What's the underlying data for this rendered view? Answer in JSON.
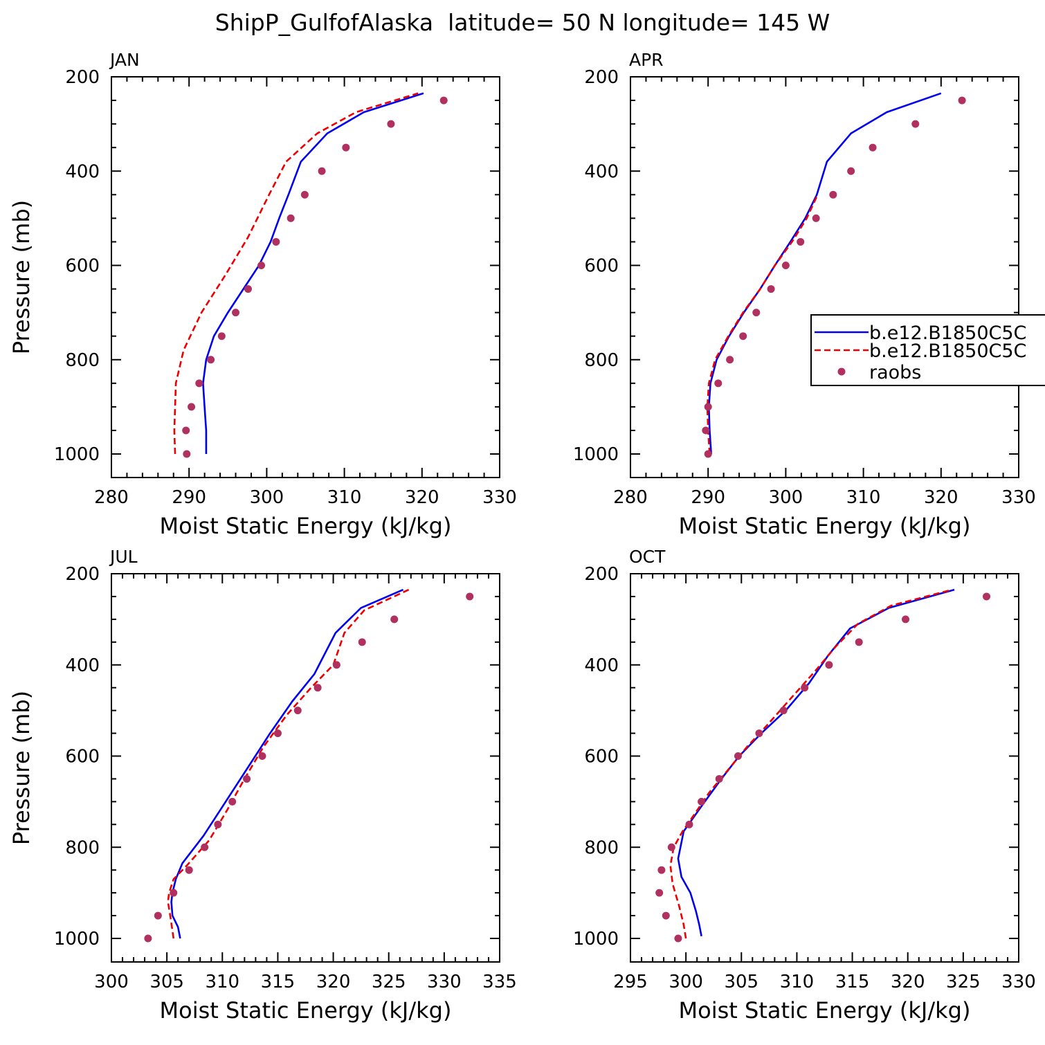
{
  "figure": {
    "title": "ShipP_GulfofAlaska  latitude= 50 N longitude= 145 W"
  },
  "colors": {
    "model1": "#0000ee",
    "model2": "#ee0000",
    "raobs": "#b03060"
  },
  "legend": {
    "entries": [
      "b.e12.B1850C5C",
      "b.e12.B1850C5C",
      "raobs"
    ],
    "placement": "right of APR panel, partially clipped"
  },
  "chart_data": [
    {
      "type": "line",
      "panel_label": "JAN",
      "xlabel": "Moist Static Energy (kJ/kg)",
      "ylabel": "Pressure (mb)",
      "xlim": [
        280,
        330
      ],
      "ylim": [
        1000,
        200
      ],
      "xticks": [
        280,
        290,
        300,
        310,
        320,
        330
      ],
      "yticks": [
        200,
        400,
        600,
        800,
        1000
      ],
      "grid": false,
      "series": [
        {
          "name": "b.e12.B1850C5C",
          "style": "solid",
          "points": [
            [
              292.2,
              1000
            ],
            [
              292.2,
              950
            ],
            [
              292.0,
              900
            ],
            [
              291.8,
              850
            ],
            [
              292.2,
              800
            ],
            [
              293.2,
              750
            ],
            [
              295.0,
              700
            ],
            [
              297.0,
              650
            ],
            [
              299.0,
              600
            ],
            [
              300.5,
              550
            ],
            [
              301.6,
              500
            ],
            [
              302.8,
              450
            ],
            [
              304.4,
              380
            ],
            [
              307.8,
              320
            ],
            [
              312.5,
              275
            ],
            [
              320.2,
              235
            ]
          ]
        },
        {
          "name": "b.e12.B1850C5C",
          "style": "dashed",
          "points": [
            [
              288.2,
              1000
            ],
            [
              288.1,
              950
            ],
            [
              288.2,
              900
            ],
            [
              288.3,
              850
            ],
            [
              289.3,
              780
            ],
            [
              291.6,
              700
            ],
            [
              294.7,
              620
            ],
            [
              297.6,
              540
            ],
            [
              300.3,
              450
            ],
            [
              302.5,
              380
            ],
            [
              306.5,
              320
            ],
            [
              311.5,
              275
            ],
            [
              319.5,
              235
            ]
          ]
        },
        {
          "name": "raobs",
          "style": "points",
          "points": [
            [
              289.7,
              1000
            ],
            [
              289.6,
              950
            ],
            [
              290.3,
              900
            ],
            [
              291.3,
              850
            ],
            [
              292.8,
              800
            ],
            [
              294.2,
              750
            ],
            [
              296.0,
              700
            ],
            [
              297.6,
              650
            ],
            [
              299.3,
              600
            ],
            [
              301.2,
              550
            ],
            [
              303.1,
              500
            ],
            [
              304.9,
              450
            ],
            [
              307.1,
              400
            ],
            [
              310.2,
              350
            ],
            [
              316.0,
              300
            ],
            [
              322.8,
              250
            ]
          ]
        }
      ]
    },
    {
      "type": "line",
      "panel_label": "APR",
      "xlabel": "Moist Static Energy (kJ/kg)",
      "ylabel": "",
      "xlim": [
        280,
        330
      ],
      "ylim": [
        1000,
        200
      ],
      "xticks": [
        280,
        290,
        300,
        310,
        320,
        330
      ],
      "yticks": [
        200,
        400,
        600,
        800,
        1000
      ],
      "grid": false,
      "series": [
        {
          "name": "b.e12.B1850C5C",
          "style": "solid",
          "points": [
            [
              290.4,
              1000
            ],
            [
              290.2,
              950
            ],
            [
              290.1,
              900
            ],
            [
              290.3,
              850
            ],
            [
              291.1,
              800
            ],
            [
              292.7,
              750
            ],
            [
              294.6,
              700
            ],
            [
              296.7,
              650
            ],
            [
              298.6,
              600
            ],
            [
              300.6,
              550
            ],
            [
              302.5,
              500
            ],
            [
              304.0,
              450
            ],
            [
              305.3,
              380
            ],
            [
              308.4,
              320
            ],
            [
              313.0,
              275
            ],
            [
              320.0,
              235
            ]
          ]
        },
        {
          "name": "b.e12.B1850C5C",
          "style": "dashed",
          "points": [
            [
              290.2,
              1000
            ],
            [
              290.0,
              950
            ],
            [
              289.9,
              900
            ],
            [
              290.1,
              850
            ],
            [
              290.9,
              800
            ],
            [
              292.6,
              750
            ],
            [
              294.5,
              700
            ],
            [
              296.7,
              650
            ],
            [
              298.6,
              600
            ],
            [
              300.8,
              550
            ],
            [
              302.7,
              500
            ],
            [
              304.1,
              450
            ]
          ]
        },
        {
          "name": "raobs",
          "style": "points",
          "points": [
            [
              290.0,
              1000
            ],
            [
              289.7,
              950
            ],
            [
              290.0,
              900
            ],
            [
              291.3,
              850
            ],
            [
              292.8,
              800
            ],
            [
              294.5,
              750
            ],
            [
              296.2,
              700
            ],
            [
              298.1,
              650
            ],
            [
              300.0,
              600
            ],
            [
              301.9,
              550
            ],
            [
              303.9,
              500
            ],
            [
              306.1,
              450
            ],
            [
              308.4,
              400
            ],
            [
              311.2,
              350
            ],
            [
              316.7,
              300
            ],
            [
              322.7,
              250
            ]
          ]
        }
      ]
    },
    {
      "type": "line",
      "panel_label": "JUL",
      "xlabel": "Moist Static Energy (kJ/kg)",
      "ylabel": "Pressure (mb)",
      "xlim": [
        300,
        335
      ],
      "ylim": [
        1000,
        200
      ],
      "xticks": [
        300,
        305,
        310,
        315,
        320,
        325,
        330,
        335
      ],
      "yticks": [
        200,
        400,
        600,
        800,
        1000
      ],
      "grid": false,
      "series": [
        {
          "name": "b.e12.B1850C5C",
          "style": "solid",
          "points": [
            [
              306.2,
              1000
            ],
            [
              306.0,
              975
            ],
            [
              305.5,
              950
            ],
            [
              305.4,
              920
            ],
            [
              305.5,
              900
            ],
            [
              305.8,
              870
            ],
            [
              306.4,
              835
            ],
            [
              308.3,
              775
            ],
            [
              310.3,
              700
            ],
            [
              312.3,
              625
            ],
            [
              314.3,
              550
            ],
            [
              316.3,
              480
            ],
            [
              318.3,
              420
            ],
            [
              320.2,
              330
            ],
            [
              322.5,
              275
            ],
            [
              326.3,
              235
            ]
          ]
        },
        {
          "name": "b.e12.B1850C5C",
          "style": "dashed",
          "points": [
            [
              305.6,
              1000
            ],
            [
              305.3,
              950
            ],
            [
              305.1,
              920
            ],
            [
              305.2,
              900
            ],
            [
              305.6,
              870
            ],
            [
              306.8,
              840
            ],
            [
              308.8,
              785
            ],
            [
              310.4,
              720
            ],
            [
              312.0,
              650
            ],
            [
              313.7,
              580
            ],
            [
              315.8,
              510
            ],
            [
              318.0,
              450
            ],
            [
              320.0,
              400
            ],
            [
              321.0,
              330
            ],
            [
              322.8,
              280
            ],
            [
              326.8,
              235
            ]
          ]
        },
        {
          "name": "raobs",
          "style": "points",
          "points": [
            [
              303.3,
              1000
            ],
            [
              304.2,
              950
            ],
            [
              305.6,
              900
            ],
            [
              307.0,
              850
            ],
            [
              308.4,
              800
            ],
            [
              309.6,
              750
            ],
            [
              310.9,
              700
            ],
            [
              312.2,
              650
            ],
            [
              313.6,
              600
            ],
            [
              315.0,
              550
            ],
            [
              316.8,
              500
            ],
            [
              318.6,
              450
            ],
            [
              320.3,
              400
            ],
            [
              322.6,
              350
            ],
            [
              325.5,
              300
            ],
            [
              332.3,
              250
            ]
          ]
        }
      ]
    },
    {
      "type": "line",
      "panel_label": "OCT",
      "xlabel": "Moist Static Energy (kJ/kg)",
      "ylabel": "",
      "xlim": [
        295,
        330
      ],
      "ylim": [
        1000,
        200
      ],
      "xticks": [
        295,
        300,
        305,
        310,
        315,
        320,
        325,
        330
      ],
      "yticks": [
        200,
        400,
        600,
        800,
        1000
      ],
      "grid": false,
      "series": [
        {
          "name": "b.e12.B1850C5C",
          "style": "solid",
          "points": [
            [
              301.4,
              995
            ],
            [
              301.2,
              970
            ],
            [
              300.9,
              940
            ],
            [
              300.4,
              900
            ],
            [
              299.6,
              865
            ],
            [
              299.3,
              825
            ],
            [
              299.8,
              765
            ],
            [
              301.4,
              710
            ],
            [
              303.2,
              650
            ],
            [
              304.8,
              600
            ],
            [
              306.8,
              550
            ],
            [
              309.0,
              500
            ],
            [
              311.1,
              440
            ],
            [
              312.8,
              380
            ],
            [
              314.8,
              320
            ],
            [
              318.3,
              275
            ],
            [
              324.2,
              235
            ]
          ]
        },
        {
          "name": "b.e12.B1850C5C",
          "style": "dashed",
          "points": [
            [
              300.0,
              1000
            ],
            [
              299.8,
              970
            ],
            [
              299.4,
              930
            ],
            [
              298.8,
              880
            ],
            [
              298.6,
              840
            ],
            [
              298.9,
              800
            ],
            [
              299.7,
              765
            ],
            [
              300.7,
              730
            ],
            [
              302.1,
              680
            ],
            [
              303.8,
              630
            ],
            [
              305.5,
              580
            ],
            [
              307.4,
              530
            ],
            [
              309.4,
              475
            ],
            [
              311.6,
              415
            ],
            [
              313.5,
              360
            ],
            [
              315.5,
              310
            ],
            [
              318.5,
              270
            ],
            [
              324.0,
              235
            ]
          ]
        },
        {
          "name": "raobs",
          "style": "points",
          "points": [
            [
              299.3,
              1000
            ],
            [
              298.2,
              950
            ],
            [
              297.6,
              900
            ],
            [
              297.8,
              850
            ],
            [
              298.7,
              800
            ],
            [
              300.3,
              750
            ],
            [
              301.4,
              700
            ],
            [
              303.0,
              650
            ],
            [
              304.7,
              600
            ],
            [
              306.6,
              550
            ],
            [
              308.8,
              500
            ],
            [
              310.7,
              450
            ],
            [
              312.9,
              400
            ],
            [
              315.6,
              350
            ],
            [
              319.8,
              300
            ],
            [
              327.1,
              250
            ]
          ]
        }
      ]
    }
  ]
}
